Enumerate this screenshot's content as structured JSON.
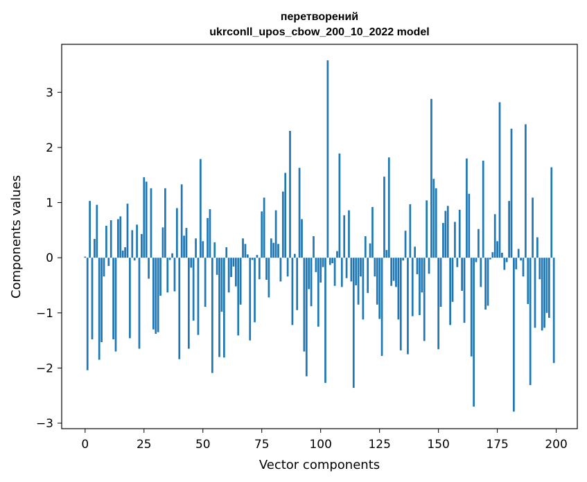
{
  "chart_data": {
    "type": "bar",
    "title_line1": "перетворений",
    "title_line2": "ukrconll_upos_cbow_200_10_2022 model",
    "xlabel": "Vector components",
    "ylabel": "Components values",
    "xlim": [
      -9.95,
      208.95
    ],
    "ylim": [
      -3.1,
      3.87
    ],
    "x_ticks": [
      0,
      25,
      50,
      75,
      100,
      125,
      150,
      175,
      200
    ],
    "x_tick_labels": [
      "0",
      "25",
      "50",
      "75",
      "100",
      "125",
      "150",
      "175",
      "200"
    ],
    "y_ticks": [
      -3,
      -2,
      -1,
      0,
      1,
      2,
      3
    ],
    "y_tick_labels": [
      "−3",
      "−2",
      "−1",
      "0",
      "1",
      "2",
      "3"
    ],
    "bar_color": "#1f77b4",
    "values": [
      0.02,
      -2.04,
      1.03,
      -1.48,
      0.34,
      0.96,
      -1.85,
      -1.53,
      -0.34,
      0.58,
      -0.15,
      0.68,
      -1.48,
      -1.7,
      0.7,
      0.75,
      0.13,
      0.19,
      0.98,
      -1.46,
      0.5,
      -0.05,
      0.6,
      -1.65,
      0.43,
      1.46,
      1.38,
      -0.38,
      1.26,
      -1.3,
      -1.38,
      -1.35,
      -0.69,
      0.55,
      1.26,
      -0.63,
      -0.04,
      0.08,
      -0.61,
      0.9,
      -1.84,
      1.33,
      0.4,
      0.54,
      -1.65,
      -0.18,
      -1.14,
      0.35,
      -1.4,
      1.79,
      0.3,
      -0.89,
      0.72,
      0.88,
      -2.09,
      0.28,
      -0.31,
      -1.8,
      -0.98,
      -1.81,
      0.19,
      -0.63,
      -0.35,
      -0.16,
      -0.52,
      -1.41,
      -0.85,
      0.35,
      0.25,
      0.06,
      -1.5,
      -0.04,
      -1.17,
      0.05,
      -0.39,
      0.84,
      1.09,
      -0.4,
      -0.72,
      0.35,
      0.27,
      0.86,
      0.25,
      -0.43,
      1.2,
      1.54,
      -0.34,
      2.3,
      -1.22,
      0.07,
      -0.95,
      1.63,
      0.7,
      -1.7,
      -2.15,
      -0.57,
      -0.88,
      0.39,
      -0.26,
      -1.25,
      -0.45,
      -0.17,
      -2.27,
      3.58,
      -0.13,
      -0.1,
      -0.51,
      0.12,
      1.89,
      -0.53,
      0.77,
      -0.37,
      0.86,
      -0.43,
      -2.36,
      -0.5,
      -0.85,
      -0.34,
      -1.12,
      0.39,
      -0.64,
      0.26,
      0.92,
      -0.34,
      -0.85,
      -1.11,
      -1.78,
      1.47,
      0.14,
      1.82,
      -0.51,
      -0.42,
      -0.53,
      -1.12,
      -1.68,
      -0.05,
      0.49,
      -1.75,
      0.97,
      -1.06,
      0.2,
      -0.3,
      -1.04,
      -0.63,
      -1.51,
      1.04,
      -0.29,
      2.88,
      1.43,
      1.26,
      -1.66,
      -0.89,
      0.63,
      0.85,
      0.94,
      -1.22,
      -0.8,
      0.65,
      -0.17,
      0.87,
      -0.6,
      -1.18,
      1.8,
      1.16,
      -1.79,
      -2.7,
      -0.08,
      0.52,
      -0.53,
      1.76,
      -0.94,
      -0.87,
      -0.03,
      0.1,
      0.79,
      0.3,
      2.82,
      0.09,
      -0.22,
      -0.08,
      1.03,
      2.34,
      -2.79,
      -0.21,
      0.16,
      -0.05,
      -0.34,
      2.42,
      -0.84,
      -2.31,
      1.09,
      -1.27,
      0.37,
      -0.39,
      -1.32,
      -1.27,
      -1.0,
      -1.09,
      1.64,
      -1.91
    ]
  }
}
